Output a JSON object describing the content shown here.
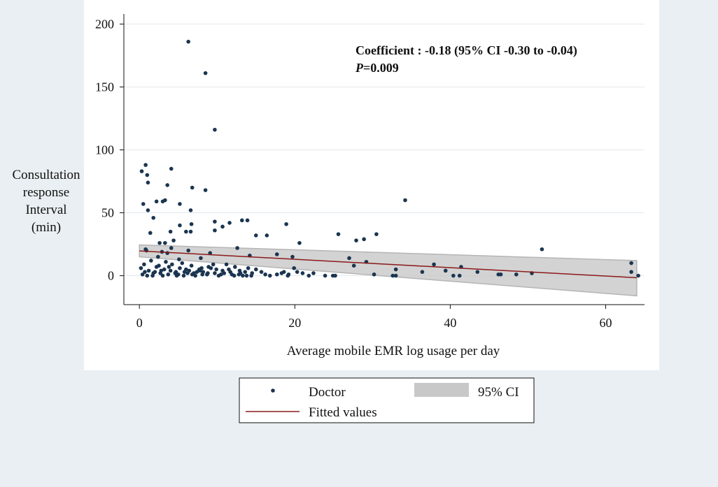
{
  "chart_data": {
    "type": "scatter",
    "title": "",
    "xlabel": "Average mobile EMR log usage per day",
    "ylabel_lines": [
      "Consultation",
      "response",
      "Interval",
      "(min)"
    ],
    "xlim": [
      -2,
      65
    ],
    "ylim": [
      -23,
      208
    ],
    "xticks": [
      0,
      20,
      40,
      60
    ],
    "yticks": [
      0,
      50,
      100,
      150,
      200
    ],
    "grid": "horizontal",
    "annotation": {
      "line1": "Coefficient : -0.18 (95% CI -0.30 to -0.04)",
      "line2_italic": "P",
      "line2_rest": "=0.009"
    },
    "legend": {
      "position": "bottom",
      "items": [
        {
          "label": "Doctor",
          "kind": "marker"
        },
        {
          "label": "95% CI",
          "kind": "band"
        },
        {
          "label": "Fitted values",
          "kind": "line"
        }
      ]
    },
    "colors": {
      "marker": "#1a3550",
      "fit_line": "#8b1a1a",
      "ci_band": "#c8c8c8",
      "plot_bg": "#ffffff",
      "outer_bg": "#e9eff2"
    },
    "fitted_line": {
      "x": [
        0,
        64
      ],
      "y": [
        19.7,
        -1.6
      ]
    },
    "ci_band": {
      "x": [
        0,
        64
      ],
      "upper": [
        24.5,
        12
      ],
      "lower": [
        15,
        -16
      ]
    },
    "series": [
      {
        "name": "Doctor",
        "points": [
          [
            6.3,
            186
          ],
          [
            8.5,
            161
          ],
          [
            9.7,
            116
          ],
          [
            0.8,
            88
          ],
          [
            0.3,
            83
          ],
          [
            4.1,
            85
          ],
          [
            1.0,
            80
          ],
          [
            6.8,
            70
          ],
          [
            8.5,
            68
          ],
          [
            1.1,
            74
          ],
          [
            3.6,
            72
          ],
          [
            0.5,
            57
          ],
          [
            2.2,
            59
          ],
          [
            3.0,
            59
          ],
          [
            3.3,
            60
          ],
          [
            5.2,
            57
          ],
          [
            6.6,
            52
          ],
          [
            1.1,
            52
          ],
          [
            1.8,
            46
          ],
          [
            9.7,
            43
          ],
          [
            11.6,
            42
          ],
          [
            13.2,
            44
          ],
          [
            13.9,
            44
          ],
          [
            18.9,
            41
          ],
          [
            10.7,
            39
          ],
          [
            6.7,
            41
          ],
          [
            5.2,
            40
          ],
          [
            9.7,
            36
          ],
          [
            6.0,
            35
          ],
          [
            6.6,
            35
          ],
          [
            4.0,
            35
          ],
          [
            1.4,
            34
          ],
          [
            15.0,
            32
          ],
          [
            16.4,
            32
          ],
          [
            25.6,
            33
          ],
          [
            30.5,
            33
          ],
          [
            27.9,
            28
          ],
          [
            28.9,
            29
          ],
          [
            34.2,
            60
          ],
          [
            51.8,
            21
          ],
          [
            20.6,
            26
          ],
          [
            2.6,
            26
          ],
          [
            3.3,
            26
          ],
          [
            4.4,
            28
          ],
          [
            12.6,
            22
          ],
          [
            0.8,
            21
          ],
          [
            4.1,
            22
          ],
          [
            9.1,
            18
          ],
          [
            14.2,
            16
          ],
          [
            17.7,
            17
          ],
          [
            19.7,
            15
          ],
          [
            27.0,
            14
          ],
          [
            29.2,
            11
          ],
          [
            27.6,
            8
          ],
          [
            33.0,
            5
          ],
          [
            37.9,
            9
          ],
          [
            36.4,
            3
          ],
          [
            39.4,
            4
          ],
          [
            41.4,
            7
          ],
          [
            43.5,
            3
          ],
          [
            40.4,
            0
          ],
          [
            41.2,
            0
          ],
          [
            46.2,
            1
          ],
          [
            46.5,
            1
          ],
          [
            48.5,
            1
          ],
          [
            50.5,
            2
          ],
          [
            63.3,
            10
          ],
          [
            63.3,
            3
          ],
          [
            64.2,
            0
          ],
          [
            30.2,
            1
          ],
          [
            32.6,
            0
          ],
          [
            33.0,
            0
          ],
          [
            23.9,
            0
          ],
          [
            24.9,
            0
          ],
          [
            25.2,
            0
          ],
          [
            21.0,
            2
          ],
          [
            21.8,
            0
          ],
          [
            22.4,
            2
          ],
          [
            19.9,
            6
          ],
          [
            19.2,
            1
          ],
          [
            18.3,
            2
          ],
          [
            17.7,
            1
          ],
          [
            16.8,
            0
          ],
          [
            16.2,
            1
          ],
          [
            15.7,
            3
          ],
          [
            15.0,
            5
          ],
          [
            14.5,
            2
          ],
          [
            13.8,
            0
          ],
          [
            13.3,
            0
          ],
          [
            12.8,
            1
          ],
          [
            12.3,
            7
          ],
          [
            11.7,
            3
          ],
          [
            11.2,
            9
          ],
          [
            10.7,
            4
          ],
          [
            10.2,
            0
          ],
          [
            9.7,
            2
          ],
          [
            9.2,
            6
          ],
          [
            8.7,
            1
          ],
          [
            8.2,
            3
          ],
          [
            7.7,
            5
          ],
          [
            7.2,
            0
          ],
          [
            6.7,
            8
          ],
          [
            6.2,
            2
          ],
          [
            5.7,
            0
          ],
          [
            5.2,
            6
          ],
          [
            4.7,
            3
          ],
          [
            4.2,
            9
          ],
          [
            3.7,
            1
          ],
          [
            3.2,
            5
          ],
          [
            2.7,
            2
          ],
          [
            2.2,
            7
          ],
          [
            1.7,
            0
          ],
          [
            1.2,
            4
          ],
          [
            0.7,
            3
          ],
          [
            0.2,
            6
          ],
          [
            0.4,
            1
          ],
          [
            1.5,
            12
          ],
          [
            2.5,
            8
          ],
          [
            3.4,
            11
          ],
          [
            4.6,
            2
          ],
          [
            5.5,
            10
          ],
          [
            6.4,
            4
          ],
          [
            7.4,
            3
          ],
          [
            8.1,
            1
          ],
          [
            8.9,
            7
          ],
          [
            9.9,
            5
          ],
          [
            10.9,
            2
          ],
          [
            11.9,
            1
          ],
          [
            12.9,
            4
          ],
          [
            13.6,
            3
          ],
          [
            14.4,
            0
          ],
          [
            18.6,
            3
          ],
          [
            19.1,
            0
          ],
          [
            20.3,
            3
          ],
          [
            1.0,
            0
          ],
          [
            2.0,
            3
          ],
          [
            3.0,
            0
          ],
          [
            4.0,
            4
          ],
          [
            5.0,
            1
          ],
          [
            6.0,
            5
          ],
          [
            7.0,
            2
          ],
          [
            8.0,
            6
          ],
          [
            0.6,
            9
          ],
          [
            1.8,
            2
          ],
          [
            2.8,
            4
          ],
          [
            3.8,
            7
          ],
          [
            4.8,
            0
          ],
          [
            5.8,
            3
          ],
          [
            6.8,
            1
          ],
          [
            7.8,
            4
          ],
          [
            8.8,
            2
          ],
          [
            9.5,
            9
          ],
          [
            10.5,
            1
          ],
          [
            11.5,
            5
          ],
          [
            12.2,
            0
          ],
          [
            13.0,
            2
          ],
          [
            14.0,
            6
          ],
          [
            0.9,
            20
          ],
          [
            2.4,
            15
          ],
          [
            3.6,
            18
          ],
          [
            5.1,
            13
          ],
          [
            6.3,
            20
          ],
          [
            7.9,
            14
          ],
          [
            2.9,
            19
          ]
        ]
      }
    ]
  }
}
